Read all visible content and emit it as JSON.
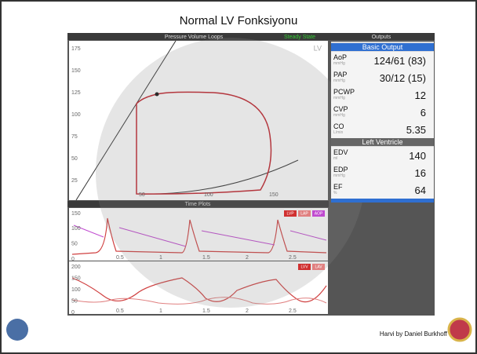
{
  "title": "Normal LV Fonksiyonu",
  "pv_panel": {
    "title": "Pressure Volume Loops",
    "status": "Steady State",
    "label": "LV",
    "y_ticks": [
      "175",
      "150",
      "125",
      "100",
      "75",
      "50",
      "25"
    ],
    "x_ticks": [
      "50",
      "100",
      "150"
    ]
  },
  "outputs": {
    "title": "Outputs",
    "sections": [
      {
        "title": "Basic Output",
        "rows": [
          {
            "name": "AoP",
            "unit": "mmHg",
            "value": "124/61 (83)"
          },
          {
            "name": "PAP",
            "unit": "mmHg",
            "value": "30/12 (15)"
          },
          {
            "name": "PCWP",
            "unit": "mmHg",
            "value": "12"
          },
          {
            "name": "CVP",
            "unit": "mmHg",
            "value": "6"
          },
          {
            "name": "CO",
            "unit": "L/min",
            "value": "5.35"
          }
        ]
      },
      {
        "title": "Left Ventricle",
        "rows": [
          {
            "name": "EDV",
            "unit": "ml",
            "value": "140"
          },
          {
            "name": "EDP",
            "unit": "mmHg",
            "value": "16"
          },
          {
            "name": "EF",
            "unit": "%",
            "value": "64"
          }
        ]
      }
    ]
  },
  "time_plots": {
    "title": "Time Plots",
    "plots": [
      {
        "y_ticks": [
          "150",
          "100",
          "50",
          "0"
        ],
        "x_ticks": [
          "0.5",
          "1",
          "1.5",
          "2",
          "2.5"
        ],
        "legend": [
          "LVP",
          "LAP",
          "AOP"
        ]
      },
      {
        "y_ticks": [
          "200",
          "150",
          "100",
          "50",
          "0"
        ],
        "x_ticks": [
          "0.5",
          "1",
          "1.5",
          "2",
          "2.5"
        ],
        "legend": [
          "LVV",
          "LAV"
        ]
      }
    ]
  },
  "footer": {
    "credit": "Harvi by Daniel Burkhoff"
  }
}
